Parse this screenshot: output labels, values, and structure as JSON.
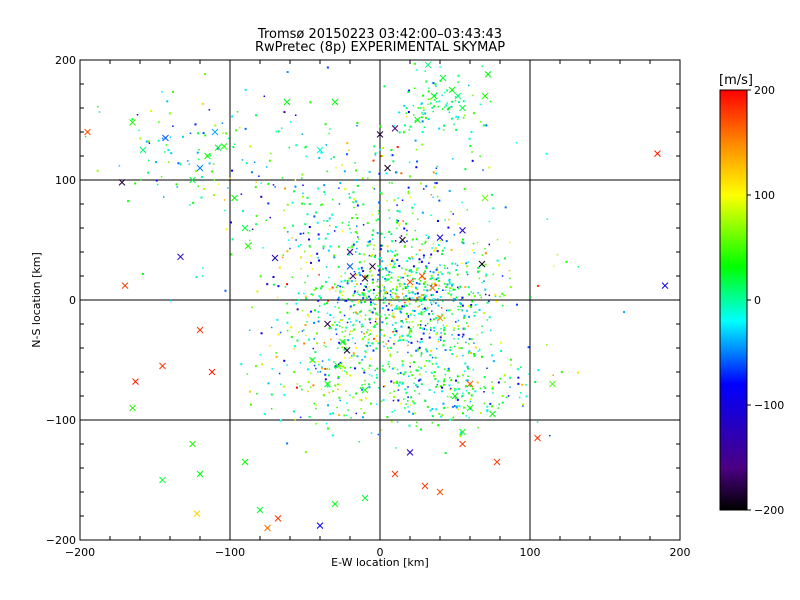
{
  "chart_data": {
    "type": "scatter",
    "title": "Tromsø 20150223 03:42:00–03:43:43",
    "subtitle": "RwPretec (8p) EXPERIMENTAL SKYMAP",
    "xlabel": "E-W location [km]",
    "ylabel": "N-S location [km]",
    "xlim": [
      -200,
      200
    ],
    "ylim": [
      -200,
      200
    ],
    "x_ticks": [
      -200,
      -100,
      0,
      100,
      200
    ],
    "y_ticks": [
      -200,
      -100,
      0,
      100,
      200
    ],
    "x_tick_labels": [
      "−200",
      "−100",
      "0",
      "100",
      "200"
    ],
    "y_tick_labels": [
      "−200",
      "−100",
      "0",
      "100",
      "200"
    ],
    "grid": "major gridlines at every 100 km",
    "markers": [
      "x",
      "."
    ],
    "colorbar": {
      "label": "[m/s]",
      "range": [
        -200,
        200
      ],
      "ticks": [
        200,
        100,
        0,
        -100,
        -200
      ],
      "tick_labels": [
        "200",
        "100",
        "0",
        "−100",
        "−200"
      ],
      "colormap": [
        "#000000",
        "#4b0082",
        "#0000ff",
        "#00ffff",
        "#00ff00",
        "#ffff00",
        "#ff8c00",
        "#ff0000"
      ]
    },
    "point_count_approx": 2000,
    "points_x_sample": [
      [
        -195,
        140,
        170,
        "x"
      ],
      [
        -172,
        98,
        -180,
        "x"
      ],
      [
        -165,
        148,
        40,
        "x"
      ],
      [
        -158,
        125,
        10,
        "x"
      ],
      [
        -143,
        135,
        -60,
        "x"
      ],
      [
        -133,
        36,
        -110,
        "x"
      ],
      [
        -125,
        100,
        20,
        "x"
      ],
      [
        -120,
        110,
        -50,
        "x"
      ],
      [
        -115,
        120,
        30,
        "x"
      ],
      [
        -110,
        140,
        -40,
        "x"
      ],
      [
        -108,
        127,
        20,
        "x"
      ],
      [
        -104,
        128,
        40,
        "x"
      ],
      [
        -97,
        85,
        30,
        "x"
      ],
      [
        -90,
        60,
        20,
        "x"
      ],
      [
        -88,
        45,
        40,
        "x"
      ],
      [
        -62,
        165,
        30,
        "x"
      ],
      [
        -40,
        125,
        -10,
        "x"
      ],
      [
        -30,
        165,
        30,
        "x"
      ],
      [
        -20,
        40,
        -150,
        "x"
      ],
      [
        -5,
        28,
        -180,
        "x"
      ],
      [
        0,
        138,
        -180,
        "x"
      ],
      [
        10,
        143,
        -160,
        "x"
      ],
      [
        25,
        150,
        30,
        "x"
      ],
      [
        32,
        196,
        10,
        "x"
      ],
      [
        36,
        170,
        30,
        "x"
      ],
      [
        42,
        185,
        20,
        "x"
      ],
      [
        48,
        175,
        30,
        "x"
      ],
      [
        52,
        170,
        10,
        "x"
      ],
      [
        55,
        160,
        20,
        "x"
      ],
      [
        70,
        170,
        40,
        "x"
      ],
      [
        72,
        188,
        30,
        "x"
      ],
      [
        185,
        122,
        190,
        "x"
      ],
      [
        190,
        12,
        -90,
        "x"
      ],
      [
        -170,
        12,
        180,
        "x"
      ],
      [
        -163,
        -68,
        190,
        "x"
      ],
      [
        -145,
        -55,
        180,
        "x"
      ],
      [
        -120,
        -25,
        180,
        "x"
      ],
      [
        -112,
        -60,
        190,
        "x"
      ],
      [
        -165,
        -90,
        40,
        "x"
      ],
      [
        -145,
        -150,
        20,
        "x"
      ],
      [
        -125,
        -120,
        40,
        "x"
      ],
      [
        -120,
        -145,
        30,
        "x"
      ],
      [
        -90,
        -135,
        30,
        "x"
      ],
      [
        -80,
        -175,
        20,
        "x"
      ],
      [
        -75,
        -190,
        160,
        "x"
      ],
      [
        -68,
        -182,
        180,
        "x"
      ],
      [
        -40,
        -188,
        -80,
        "x"
      ],
      [
        -30,
        -170,
        30,
        "x"
      ],
      [
        -10,
        -165,
        20,
        "x"
      ],
      [
        10,
        -145,
        180,
        "x"
      ],
      [
        20,
        -127,
        -110,
        "x"
      ],
      [
        30,
        -155,
        180,
        "x"
      ],
      [
        40,
        -160,
        170,
        "x"
      ],
      [
        55,
        -120,
        180,
        "x"
      ],
      [
        75,
        -95,
        30,
        "x"
      ],
      [
        78,
        -135,
        180,
        "x"
      ],
      [
        105,
        -115,
        180,
        "x"
      ],
      [
        115,
        -70,
        50,
        "x"
      ],
      [
        -122,
        -178,
        120,
        "x"
      ],
      [
        -35,
        -20,
        -180,
        "x"
      ],
      [
        -22,
        -42,
        -190,
        "x"
      ],
      [
        -20,
        28,
        -60,
        "x"
      ],
      [
        -18,
        20,
        -160,
        "x"
      ],
      [
        -10,
        18,
        -180,
        "x"
      ],
      [
        5,
        110,
        -190,
        "x"
      ],
      [
        15,
        50,
        -190,
        "x"
      ],
      [
        40,
        52,
        -90,
        "x"
      ],
      [
        55,
        58,
        -110,
        "x"
      ],
      [
        68,
        30,
        -190,
        "x"
      ],
      [
        70,
        85,
        60,
        "x"
      ],
      [
        20,
        15,
        170,
        "x"
      ],
      [
        28,
        20,
        170,
        "x"
      ],
      [
        35,
        10,
        160,
        "x"
      ],
      [
        40,
        -15,
        150,
        "x"
      ],
      [
        -25,
        -35,
        30,
        "x"
      ],
      [
        -45,
        -50,
        20,
        "x"
      ],
      [
        -28,
        -55,
        40,
        "x"
      ],
      [
        -35,
        -70,
        30,
        "x"
      ],
      [
        -10,
        -75,
        40,
        "x"
      ],
      [
        60,
        -90,
        30,
        "x"
      ],
      [
        60,
        -70,
        170,
        "x"
      ],
      [
        50,
        -80,
        30,
        "x"
      ],
      [
        55,
        -110,
        30,
        "x"
      ],
      [
        -70,
        35,
        -130,
        "x"
      ]
    ]
  }
}
